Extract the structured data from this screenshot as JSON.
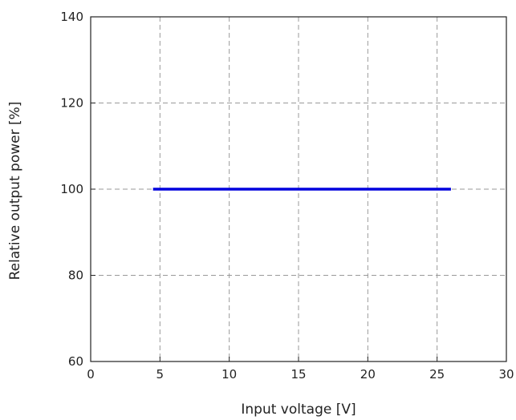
{
  "chart_data": {
    "type": "line",
    "title": "",
    "xlabel": "Input voltage [V]",
    "ylabel": "Relative output power [%]",
    "xlim": [
      0,
      30
    ],
    "ylim": [
      60,
      140
    ],
    "xticks": [
      0,
      5,
      10,
      15,
      20,
      25,
      30
    ],
    "yticks": [
      60,
      80,
      100,
      120,
      140
    ],
    "xtick_labels": [
      "0",
      "5",
      "10",
      "15",
      "20",
      "25",
      "30"
    ],
    "ytick_labels": [
      "60",
      "80",
      "100",
      "120",
      "140"
    ],
    "grid": true,
    "grid_style": "dashed",
    "colors": {
      "series": "#0000dd",
      "grid": "#999999",
      "axis": "#222222"
    },
    "series": [
      {
        "x": [
          4.5,
          26
        ],
        "y": [
          100,
          100
        ]
      }
    ]
  }
}
